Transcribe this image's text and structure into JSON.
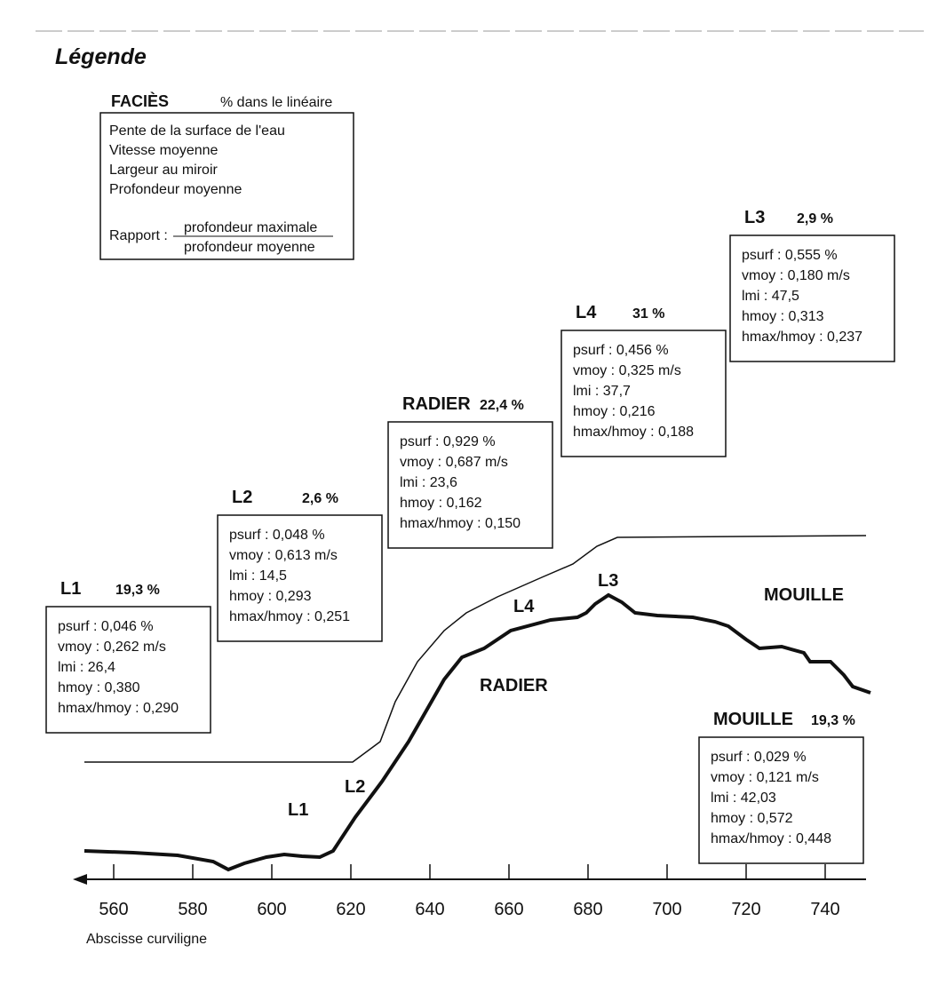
{
  "title": "Légende",
  "legend": {
    "facies": "FACIÈS",
    "percent": "% dans le linéaire",
    "lines": [
      "Pente de la surface de l'eau",
      "Vitesse moyenne",
      "Largeur au miroir",
      "Profondeur moyenne"
    ],
    "ratio_label": "Rapport :",
    "ratio_num": "profondeur maximale",
    "ratio_den": "profondeur moyenne"
  },
  "facies": [
    {
      "name": "L1",
      "percent": "19,3 %",
      "lines": [
        "psurf : 0,046 %",
        "vmoy : 0,262 m/s",
        "lmi : 26,4",
        "hmoy : 0,380",
        "hmax/hmoy : 0,290"
      ]
    },
    {
      "name": "L2",
      "percent": "2,6 %",
      "lines": [
        "psurf : 0,048 %",
        "vmoy : 0,613 m/s",
        "lmi : 14,5",
        "hmoy : 0,293",
        "hmax/hmoy : 0,251"
      ]
    },
    {
      "name": "RADIER",
      "percent": "22,4 %",
      "lines": [
        "psurf : 0,929 %",
        "vmoy : 0,687 m/s",
        "lmi : 23,6",
        "hmoy : 0,162",
        "hmax/hmoy : 0,150"
      ]
    },
    {
      "name": "L4",
      "percent": "31 %",
      "lines": [
        "psurf : 0,456 %",
        "vmoy : 0,325 m/s",
        "lmi : 37,7",
        "hmoy : 0,216",
        "hmax/hmoy : 0,188"
      ]
    },
    {
      "name": "L3",
      "percent": "2,9 %",
      "lines": [
        "psurf : 0,555 %",
        "vmoy : 0,180 m/s",
        "lmi : 47,5",
        "hmoy : 0,313",
        "hmax/hmoy : 0,237"
      ]
    },
    {
      "name": "MOUILLE",
      "percent": "19,3 %",
      "lines": [
        "psurf : 0,029 %",
        "vmoy : 0,121 m/s",
        "lmi : 42,03",
        "hmoy : 0,572",
        "hmax/hmoy : 0,448"
      ]
    }
  ],
  "profile_labels": [
    "L1",
    "L2",
    "RADIER",
    "L4",
    "L3",
    "MOUILLE"
  ],
  "axis": {
    "ticks": [
      "560",
      "580",
      "600",
      "620",
      "640",
      "660",
      "680",
      "700",
      "720",
      "740"
    ],
    "label": "Abscisse curviligne"
  }
}
